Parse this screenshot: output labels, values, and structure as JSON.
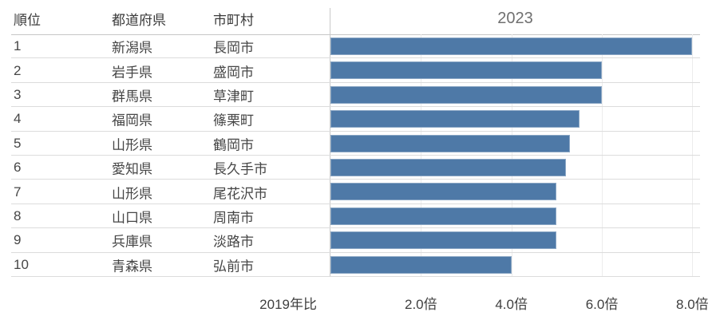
{
  "table": {
    "headers": {
      "rank": "順位",
      "prefecture": "都道府県",
      "municipality": "市町村"
    },
    "rows": [
      {
        "rank": "1",
        "prefecture": "新潟県",
        "municipality": "長岡市",
        "value": 8.0
      },
      {
        "rank": "2",
        "prefecture": "岩手県",
        "municipality": "盛岡市",
        "value": 6.0
      },
      {
        "rank": "3",
        "prefecture": "群馬県",
        "municipality": "草津町",
        "value": 6.0
      },
      {
        "rank": "4",
        "prefecture": "福岡県",
        "municipality": "篠栗町",
        "value": 5.5
      },
      {
        "rank": "5",
        "prefecture": "山形県",
        "municipality": "鶴岡市",
        "value": 5.3
      },
      {
        "rank": "6",
        "prefecture": "愛知県",
        "municipality": "長久手市",
        "value": 5.2
      },
      {
        "rank": "7",
        "prefecture": "山形県",
        "municipality": "尾花沢市",
        "value": 5.0
      },
      {
        "rank": "8",
        "prefecture": "山口県",
        "municipality": "周南市",
        "value": 5.0
      },
      {
        "rank": "9",
        "prefecture": "兵庫県",
        "municipality": "淡路市",
        "value": 5.0
      },
      {
        "rank": "10",
        "prefecture": "青森県",
        "municipality": "弘前市",
        "value": 4.0
      }
    ]
  },
  "chart_data": {
    "type": "bar",
    "orientation": "horizontal",
    "title": "2023",
    "xlabel": "2019年比",
    "categories": [
      "長岡市",
      "盛岡市",
      "草津町",
      "篠栗町",
      "鶴岡市",
      "長久手市",
      "尾花沢市",
      "周南市",
      "淡路市",
      "弘前市"
    ],
    "values": [
      8.0,
      6.0,
      6.0,
      5.5,
      5.3,
      5.2,
      5.0,
      5.0,
      5.0,
      4.0
    ],
    "xlim": [
      0,
      8.17
    ],
    "x_ticks": [
      {
        "value": 2,
        "label": "2.0倍"
      },
      {
        "value": 4,
        "label": "4.0倍"
      },
      {
        "value": 6,
        "label": "6.0倍"
      },
      {
        "value": 8,
        "label": "8.0倍"
      }
    ],
    "grid": "vertical",
    "legend": "none",
    "bar_color": "#4e79a7"
  }
}
